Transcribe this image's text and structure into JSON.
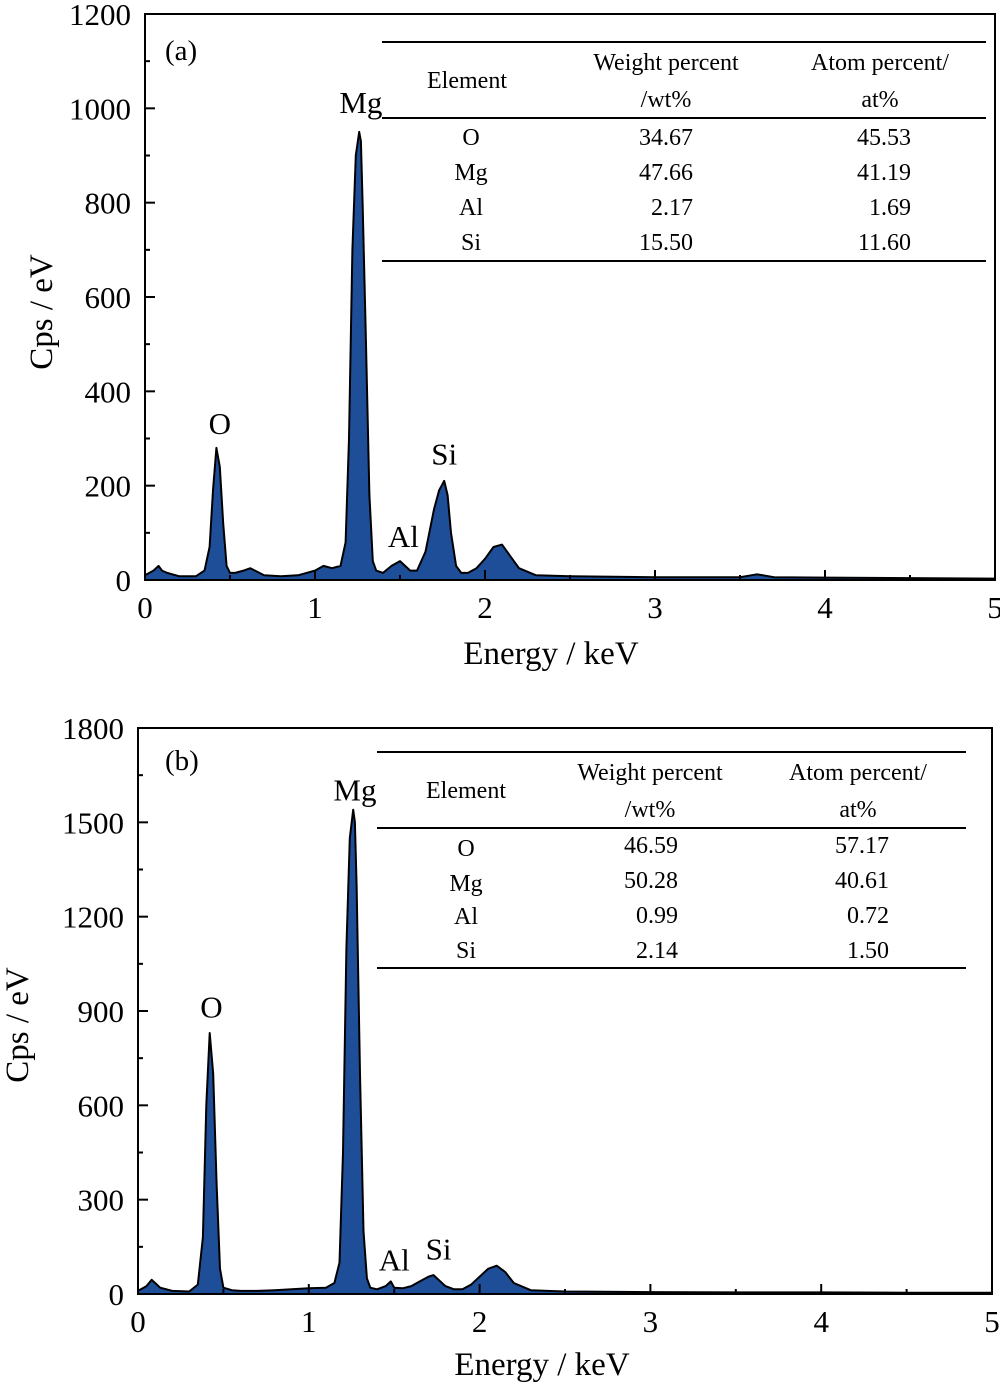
{
  "fill_color": "#1f4e99",
  "chart_data": [
    {
      "type": "area",
      "panel_label": "(a)",
      "xlabel": "Energy / keV",
      "ylabel": "Cps / eV",
      "xlim": [
        0,
        5
      ],
      "ylim": [
        0,
        1200
      ],
      "xticks": [
        0,
        1,
        2,
        3,
        4,
        5
      ],
      "yticks": [
        0,
        200,
        400,
        600,
        800,
        1000,
        1200
      ],
      "x_tick_labels": [
        "0",
        "1",
        "2",
        "3",
        "4",
        "5"
      ],
      "y_tick_labels": [
        "0",
        "200",
        "400",
        "600",
        "800",
        "1000",
        "1200"
      ],
      "grid": false,
      "series": [
        {
          "x": [
            0,
            0.05,
            0.08,
            0.1,
            0.13,
            0.2,
            0.3,
            0.35,
            0.38,
            0.4,
            0.42,
            0.44,
            0.46,
            0.48,
            0.5,
            0.53,
            0.58,
            0.62,
            0.7,
            0.8,
            0.9,
            1.0,
            1.05,
            1.1,
            1.15,
            1.18,
            1.2,
            1.22,
            1.24,
            1.26,
            1.27,
            1.28,
            1.3,
            1.32,
            1.34,
            1.36,
            1.4,
            1.45,
            1.5,
            1.53,
            1.56,
            1.6,
            1.65,
            1.7,
            1.73,
            1.76,
            1.78,
            1.8,
            1.83,
            1.86,
            1.9,
            1.95,
            2.0,
            2.05,
            2.1,
            2.15,
            2.2,
            2.3,
            2.5,
            3.0,
            3.5,
            3.6,
            3.7,
            4.0,
            4.5,
            5.0
          ],
          "y": [
            10,
            20,
            30,
            20,
            15,
            8,
            8,
            20,
            70,
            190,
            280,
            240,
            120,
            30,
            15,
            15,
            20,
            25,
            10,
            8,
            10,
            20,
            30,
            25,
            30,
            80,
            300,
            700,
            900,
            950,
            930,
            800,
            500,
            180,
            40,
            20,
            15,
            30,
            40,
            30,
            20,
            20,
            60,
            150,
            190,
            210,
            180,
            100,
            30,
            15,
            15,
            25,
            45,
            70,
            75,
            50,
            25,
            10,
            8,
            6,
            6,
            12,
            6,
            5,
            4,
            3
          ]
        }
      ],
      "annotations": [
        {
          "text": "O",
          "x": 0.44,
          "y": 310
        },
        {
          "text": "Mg",
          "x": 1.27,
          "y": 990
        },
        {
          "text": "Al",
          "x": 1.52,
          "y": 70
        },
        {
          "text": "Si",
          "x": 1.76,
          "y": 245
        }
      ],
      "table": {
        "headers": [
          {
            "line1": "Element",
            "line2": ""
          },
          {
            "line1": "Weight percent",
            "line2": "/wt%"
          },
          {
            "line1": "Atom percent/",
            "line2": "at%"
          }
        ],
        "rows": [
          [
            "O",
            "34.67",
            "45.53"
          ],
          [
            "Mg",
            "47.66",
            "41.19"
          ],
          [
            "Al",
            "2.17",
            "1.69"
          ],
          [
            "Si",
            "15.50",
            "11.60"
          ]
        ]
      }
    },
    {
      "type": "area",
      "panel_label": "(b)",
      "xlabel": "Energy / keV",
      "ylabel": "Cps / eV",
      "xlim": [
        0,
        5
      ],
      "ylim": [
        0,
        1800
      ],
      "xticks": [
        0,
        1,
        2,
        3,
        4,
        5
      ],
      "yticks": [
        0,
        300,
        600,
        900,
        1200,
        1500,
        1800
      ],
      "x_tick_labels": [
        "0",
        "1",
        "2",
        "3",
        "4",
        "5"
      ],
      "y_tick_labels": [
        "0",
        "300",
        "600",
        "900",
        "1200",
        "1500",
        "1800"
      ],
      "grid": false,
      "series": [
        {
          "x": [
            0,
            0.05,
            0.08,
            0.1,
            0.13,
            0.2,
            0.3,
            0.35,
            0.38,
            0.4,
            0.42,
            0.44,
            0.46,
            0.48,
            0.5,
            0.55,
            0.6,
            0.7,
            0.8,
            0.9,
            1.0,
            1.1,
            1.15,
            1.18,
            1.2,
            1.22,
            1.24,
            1.26,
            1.27,
            1.28,
            1.3,
            1.32,
            1.34,
            1.36,
            1.4,
            1.45,
            1.48,
            1.5,
            1.55,
            1.6,
            1.65,
            1.7,
            1.73,
            1.76,
            1.8,
            1.85,
            1.9,
            1.95,
            2.0,
            2.05,
            2.1,
            2.15,
            2.2,
            2.3,
            2.5,
            3.0,
            3.5,
            4.0,
            4.5,
            5.0
          ],
          "y": [
            10,
            25,
            45,
            35,
            20,
            10,
            8,
            30,
            180,
            600,
            830,
            700,
            350,
            80,
            20,
            12,
            10,
            10,
            12,
            15,
            18,
            20,
            35,
            100,
            450,
            1100,
            1450,
            1540,
            1500,
            1300,
            700,
            200,
            50,
            20,
            15,
            25,
            40,
            20,
            18,
            25,
            40,
            55,
            60,
            45,
            25,
            15,
            15,
            30,
            55,
            80,
            90,
            70,
            35,
            12,
            8,
            6,
            5,
            5,
            4,
            4
          ]
        }
      ],
      "annotations": [
        {
          "text": "O",
          "x": 0.43,
          "y": 880
        },
        {
          "text": "Mg",
          "x": 1.27,
          "y": 1570
        },
        {
          "text": "Al",
          "x": 1.5,
          "y": 75
        },
        {
          "text": "Si",
          "x": 1.76,
          "y": 110
        }
      ],
      "table": {
        "headers": [
          {
            "line1": "Element",
            "line2": ""
          },
          {
            "line1": "Weight percent",
            "line2": "/wt%"
          },
          {
            "line1": "Atom percent/",
            "line2": "at%"
          }
        ],
        "rows": [
          [
            "O",
            "46.59",
            "57.17"
          ],
          [
            "Mg",
            "50.28",
            "40.61"
          ],
          [
            "Al",
            "0.99",
            "0.72"
          ],
          [
            "Si",
            "2.14",
            "1.50"
          ]
        ]
      }
    }
  ]
}
